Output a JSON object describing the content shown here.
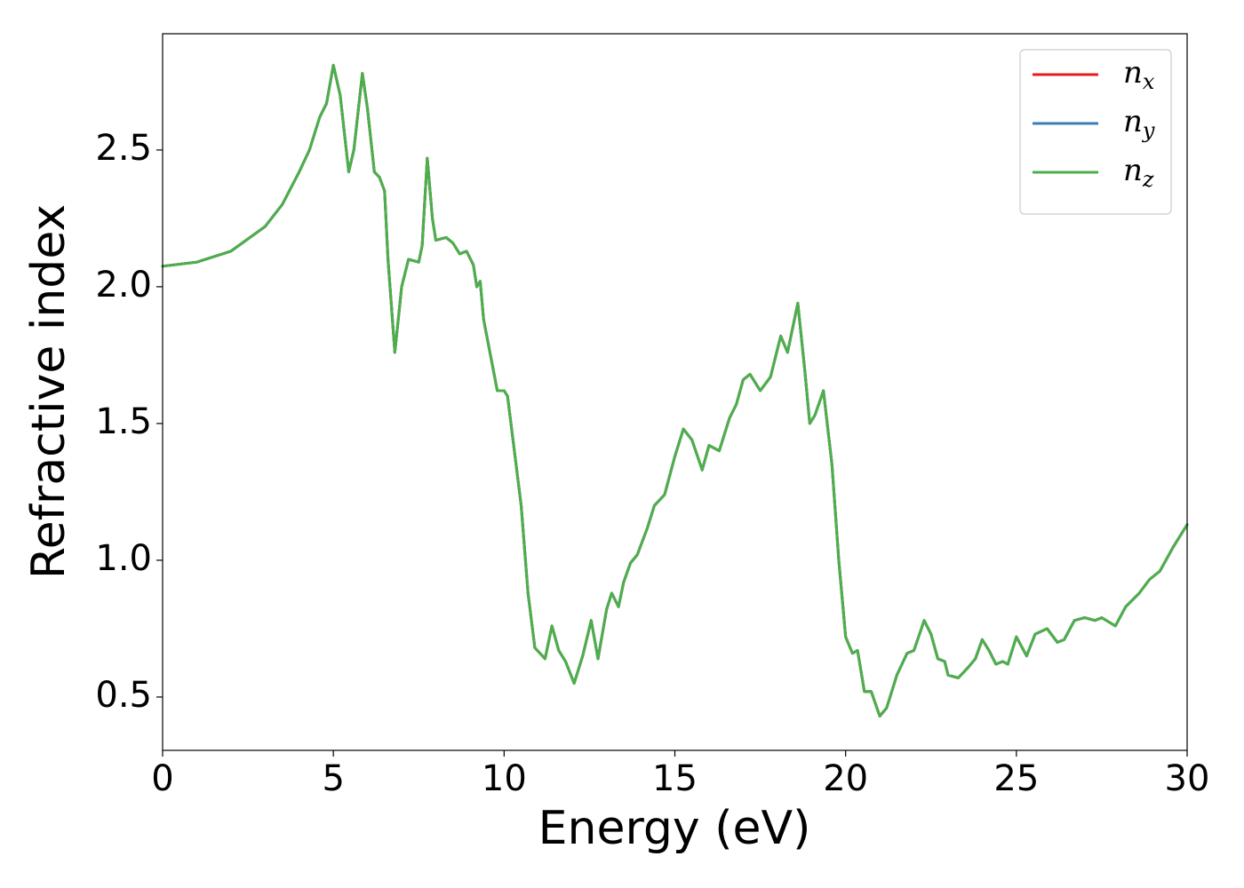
{
  "chart_data": {
    "type": "line",
    "xlabel": "Energy (eV)",
    "ylabel": "Refractive index",
    "xlim": [
      0,
      30
    ],
    "ylim": [
      0.305,
      2.925
    ],
    "xticks": [
      0,
      5,
      10,
      15,
      20,
      25,
      30
    ],
    "yticks": [
      {
        "value": 0.5,
        "label": "0.5"
      },
      {
        "value": 1.0,
        "label": "1.0"
      },
      {
        "value": 1.5,
        "label": "1.5"
      },
      {
        "value": 2.0,
        "label": "2.0"
      },
      {
        "value": 2.5,
        "label": "2.5"
      }
    ],
    "legend": "upper right",
    "x": [
      0,
      1,
      2,
      3,
      3.5,
      4,
      4.3,
      4.6,
      4.8,
      5.0,
      5.2,
      5.45,
      5.6,
      5.85,
      6.0,
      6.2,
      6.35,
      6.5,
      6.6,
      6.8,
      7.0,
      7.2,
      7.5,
      7.6,
      7.75,
      7.9,
      8.0,
      8.3,
      8.5,
      8.7,
      8.9,
      9.1,
      9.2,
      9.3,
      9.4,
      9.6,
      9.8,
      10.0,
      10.1,
      10.3,
      10.5,
      10.7,
      10.9,
      11.2,
      11.4,
      11.6,
      11.8,
      12.05,
      12.3,
      12.55,
      12.75,
      13.0,
      13.15,
      13.35,
      13.5,
      13.7,
      13.9,
      14.2,
      14.4,
      14.7,
      15.0,
      15.25,
      15.5,
      15.8,
      16.0,
      16.3,
      16.6,
      16.8,
      17.0,
      17.2,
      17.5,
      17.8,
      18.1,
      18.3,
      18.6,
      18.8,
      18.95,
      19.1,
      19.35,
      19.6,
      19.8,
      20.0,
      20.2,
      20.35,
      20.55,
      20.75,
      21.0,
      21.2,
      21.5,
      21.8,
      22.0,
      22.3,
      22.5,
      22.7,
      22.9,
      23.0,
      23.3,
      23.6,
      23.8,
      24.0,
      24.2,
      24.4,
      24.6,
      24.75,
      25.0,
      25.3,
      25.55,
      25.9,
      26.2,
      26.4,
      26.7,
      27.0,
      27.3,
      27.5,
      27.9,
      28.2,
      28.6,
      28.9,
      29.2,
      29.6,
      30.0
    ],
    "series": [
      {
        "name": "nx",
        "color": "#e41a1c",
        "values": [
          2.075,
          2.09,
          2.13,
          2.22,
          2.3,
          2.42,
          2.5,
          2.62,
          2.67,
          2.81,
          2.7,
          2.42,
          2.5,
          2.78,
          2.65,
          2.42,
          2.4,
          2.35,
          2.1,
          1.76,
          2.0,
          2.1,
          2.09,
          2.15,
          2.47,
          2.25,
          2.17,
          2.18,
          2.16,
          2.12,
          2.13,
          2.08,
          2.0,
          2.02,
          1.88,
          1.75,
          1.62,
          1.62,
          1.6,
          1.4,
          1.2,
          0.88,
          0.68,
          0.64,
          0.76,
          0.67,
          0.63,
          0.55,
          0.65,
          0.78,
          0.64,
          0.82,
          0.88,
          0.83,
          0.92,
          0.99,
          1.02,
          1.12,
          1.2,
          1.24,
          1.38,
          1.48,
          1.44,
          1.33,
          1.42,
          1.4,
          1.52,
          1.57,
          1.66,
          1.68,
          1.62,
          1.67,
          1.82,
          1.76,
          1.94,
          1.7,
          1.5,
          1.53,
          1.62,
          1.35,
          1.0,
          0.72,
          0.66,
          0.67,
          0.52,
          0.52,
          0.43,
          0.46,
          0.58,
          0.66,
          0.67,
          0.78,
          0.73,
          0.64,
          0.63,
          0.58,
          0.57,
          0.61,
          0.64,
          0.71,
          0.67,
          0.62,
          0.63,
          0.62,
          0.72,
          0.65,
          0.73,
          0.75,
          0.7,
          0.71,
          0.78,
          0.79,
          0.78,
          0.79,
          0.76,
          0.83,
          0.88,
          0.93,
          0.96,
          1.05,
          1.13
        ]
      },
      {
        "name": "ny",
        "color": "#377eb8",
        "values": [
          2.075,
          2.09,
          2.13,
          2.22,
          2.3,
          2.42,
          2.5,
          2.62,
          2.67,
          2.81,
          2.7,
          2.42,
          2.5,
          2.78,
          2.65,
          2.42,
          2.4,
          2.35,
          2.1,
          1.76,
          2.0,
          2.1,
          2.09,
          2.15,
          2.47,
          2.25,
          2.17,
          2.18,
          2.16,
          2.12,
          2.13,
          2.08,
          2.0,
          2.02,
          1.88,
          1.75,
          1.62,
          1.62,
          1.6,
          1.4,
          1.2,
          0.88,
          0.68,
          0.64,
          0.76,
          0.67,
          0.63,
          0.55,
          0.65,
          0.78,
          0.64,
          0.82,
          0.88,
          0.83,
          0.92,
          0.99,
          1.02,
          1.12,
          1.2,
          1.24,
          1.38,
          1.48,
          1.44,
          1.33,
          1.42,
          1.4,
          1.52,
          1.57,
          1.66,
          1.68,
          1.62,
          1.67,
          1.82,
          1.76,
          1.94,
          1.7,
          1.5,
          1.53,
          1.62,
          1.35,
          1.0,
          0.72,
          0.66,
          0.67,
          0.52,
          0.52,
          0.43,
          0.46,
          0.58,
          0.66,
          0.67,
          0.78,
          0.73,
          0.64,
          0.63,
          0.58,
          0.57,
          0.61,
          0.64,
          0.71,
          0.67,
          0.62,
          0.63,
          0.62,
          0.72,
          0.65,
          0.73,
          0.75,
          0.7,
          0.71,
          0.78,
          0.79,
          0.78,
          0.79,
          0.76,
          0.83,
          0.88,
          0.93,
          0.96,
          1.05,
          1.13
        ]
      },
      {
        "name": "nz",
        "color": "#4daf4a",
        "values": [
          2.075,
          2.09,
          2.13,
          2.22,
          2.3,
          2.42,
          2.5,
          2.62,
          2.67,
          2.81,
          2.7,
          2.42,
          2.5,
          2.78,
          2.65,
          2.42,
          2.4,
          2.35,
          2.1,
          1.76,
          2.0,
          2.1,
          2.09,
          2.15,
          2.47,
          2.25,
          2.17,
          2.18,
          2.16,
          2.12,
          2.13,
          2.08,
          2.0,
          2.02,
          1.88,
          1.75,
          1.62,
          1.62,
          1.6,
          1.4,
          1.2,
          0.88,
          0.68,
          0.64,
          0.76,
          0.67,
          0.63,
          0.55,
          0.65,
          0.78,
          0.64,
          0.82,
          0.88,
          0.83,
          0.92,
          0.99,
          1.02,
          1.12,
          1.2,
          1.24,
          1.38,
          1.48,
          1.44,
          1.33,
          1.42,
          1.4,
          1.52,
          1.57,
          1.66,
          1.68,
          1.62,
          1.67,
          1.82,
          1.76,
          1.94,
          1.7,
          1.5,
          1.53,
          1.62,
          1.35,
          1.0,
          0.72,
          0.66,
          0.67,
          0.52,
          0.52,
          0.43,
          0.46,
          0.58,
          0.66,
          0.67,
          0.78,
          0.73,
          0.64,
          0.63,
          0.58,
          0.57,
          0.61,
          0.64,
          0.71,
          0.67,
          0.62,
          0.63,
          0.62,
          0.72,
          0.65,
          0.73,
          0.75,
          0.7,
          0.71,
          0.78,
          0.79,
          0.78,
          0.79,
          0.76,
          0.83,
          0.88,
          0.93,
          0.96,
          1.05,
          1.13
        ]
      }
    ]
  }
}
